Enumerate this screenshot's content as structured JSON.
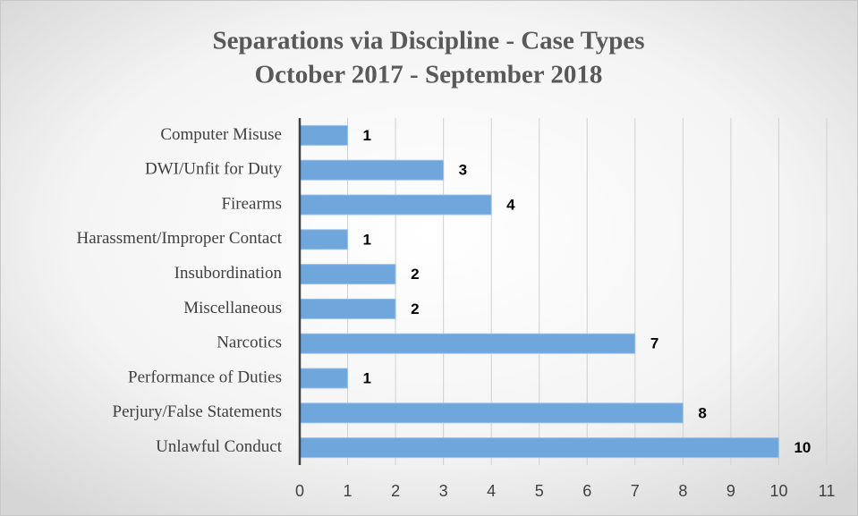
{
  "chart_data": {
    "type": "bar",
    "orientation": "horizontal",
    "title": "Separations via Discipline - Case Types",
    "subtitle": "October 2017 - September 2018",
    "categories": [
      "Computer Misuse",
      "DWI/Unfit for Duty",
      "Firearms",
      "Harassment/Improper Contact",
      "Insubordination",
      "Miscellaneous",
      "Narcotics",
      "Performance of Duties",
      "Perjury/False Statements",
      "Unlawful Conduct"
    ],
    "values": [
      1,
      3,
      4,
      1,
      2,
      2,
      7,
      1,
      8,
      10
    ],
    "color": "#6fa6dc",
    "xlim": [
      0,
      11
    ],
    "xticks": [
      0,
      1,
      2,
      3,
      4,
      5,
      6,
      7,
      8,
      9,
      10,
      11
    ],
    "grid": true
  }
}
